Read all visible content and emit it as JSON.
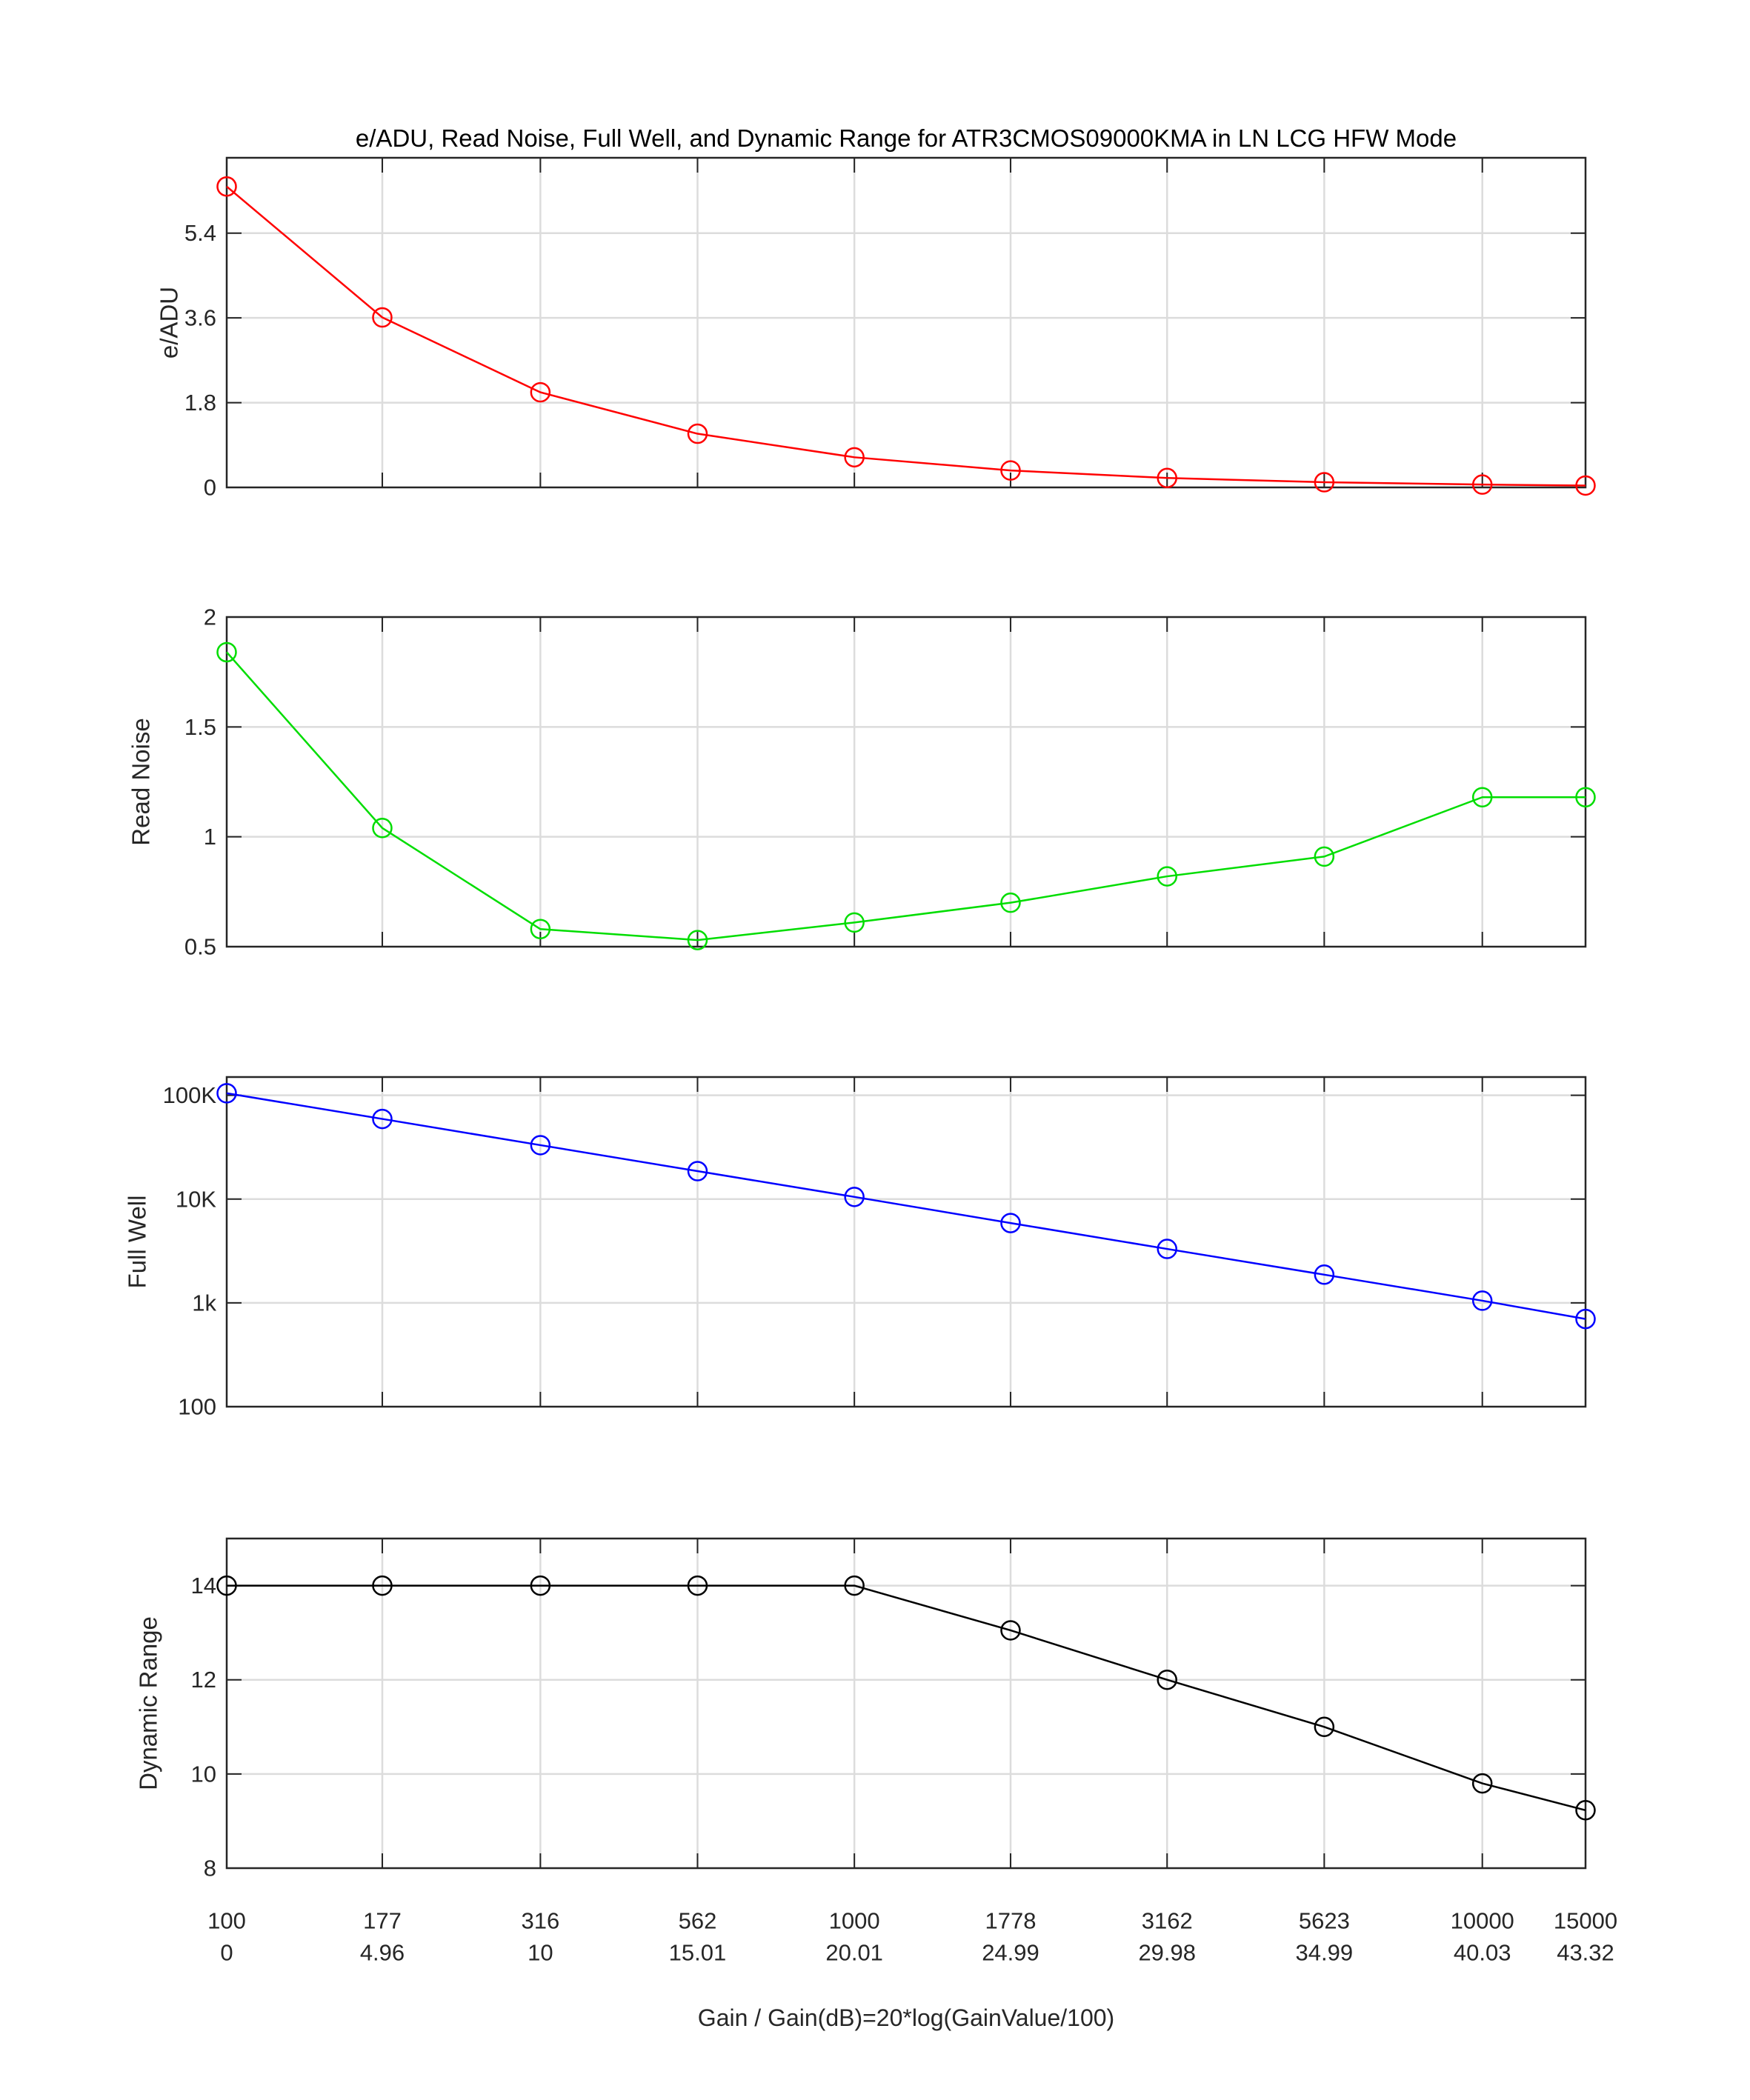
{
  "title": "e/ADU, Read Noise, Full Well, and Dynamic Range for ATR3CMOS09000KMA in LN LCG HFW Mode",
  "xlabel": "Gain / Gain(dB)=20*log(GainValue/100)",
  "style": {
    "background": "#ffffff",
    "axis_color": "#262626",
    "grid_color": "#dcdcdc",
    "tick_label_color": "#262626",
    "title_color": "#000000"
  },
  "x_axis": {
    "gain_labels": [
      "100",
      "177",
      "316",
      "562",
      "1000",
      "1778",
      "3162",
      "5623",
      "10000",
      "15000"
    ],
    "db_labels": [
      "0",
      "4.96",
      "10",
      "15.01",
      "20.01",
      "24.99",
      "29.98",
      "34.99",
      "40.03",
      "43.32"
    ],
    "db_values": [
      0,
      4.96,
      10,
      15.01,
      20.01,
      24.99,
      29.98,
      34.99,
      40.03,
      43.32
    ]
  },
  "chart_data": [
    {
      "type": "line",
      "name": "e/ADU",
      "ylabel": "e/ADU",
      "color": "#ff0000",
      "yscale": "linear",
      "ylim": [
        0,
        7
      ],
      "grid": true,
      "legend": "none",
      "x": [
        100,
        177,
        316,
        562,
        1000,
        1778,
        3162,
        5623,
        10000,
        15000
      ],
      "values": [
        6.39,
        3.61,
        2.02,
        1.14,
        0.64,
        0.36,
        0.2,
        0.11,
        0.06,
        0.04
      ],
      "yticks": [
        {
          "v": 0,
          "label": "0"
        },
        {
          "v": 1.8,
          "label": "1.8"
        },
        {
          "v": 3.6,
          "label": "3.6"
        },
        {
          "v": 5.4,
          "label": "5.4"
        }
      ]
    },
    {
      "type": "line",
      "name": "Read Noise",
      "ylabel": "Read Noise",
      "color": "#00dd00",
      "yscale": "linear",
      "ylim": [
        0.5,
        2
      ],
      "grid": true,
      "legend": "none",
      "x": [
        100,
        177,
        316,
        562,
        1000,
        1778,
        3162,
        5623,
        10000,
        15000
      ],
      "values": [
        1.84,
        1.04,
        0.58,
        0.53,
        0.61,
        0.7,
        0.82,
        0.91,
        1.18,
        1.18
      ],
      "yticks": [
        {
          "v": 0.5,
          "label": "0.5"
        },
        {
          "v": 1,
          "label": "1"
        },
        {
          "v": 1.5,
          "label": "1.5"
        },
        {
          "v": 2,
          "label": "2"
        }
      ]
    },
    {
      "type": "line",
      "name": "Full Well",
      "ylabel": "Full Well",
      "color": "#0000ff",
      "yscale": "log",
      "ylim": [
        100,
        150000
      ],
      "grid": true,
      "legend": "none",
      "x": [
        100,
        177,
        316,
        562,
        1000,
        1778,
        3162,
        5623,
        10000,
        15000
      ],
      "values": [
        104700,
        59200,
        33100,
        18600,
        10500,
        5880,
        3310,
        1870,
        1050,
        700
      ],
      "yticks": [
        {
          "v": 100,
          "label": "100"
        },
        {
          "v": 1000,
          "label": "1k"
        },
        {
          "v": 10000,
          "label": "10K"
        },
        {
          "v": 100000,
          "label": "100K"
        }
      ]
    },
    {
      "type": "line",
      "name": "Dynamic Range",
      "ylabel": "Dynamic Range",
      "color": "#000000",
      "yscale": "linear",
      "ylim": [
        8,
        15
      ],
      "grid": true,
      "legend": "none",
      "x": [
        100,
        177,
        316,
        562,
        1000,
        1778,
        3162,
        5623,
        10000,
        15000
      ],
      "values": [
        14,
        14,
        14,
        14,
        14,
        13.05,
        12,
        11,
        9.8,
        9.23
      ],
      "yticks": [
        {
          "v": 8,
          "label": "8"
        },
        {
          "v": 10,
          "label": "10"
        },
        {
          "v": 12,
          "label": "12"
        },
        {
          "v": 14,
          "label": "14"
        }
      ]
    }
  ]
}
